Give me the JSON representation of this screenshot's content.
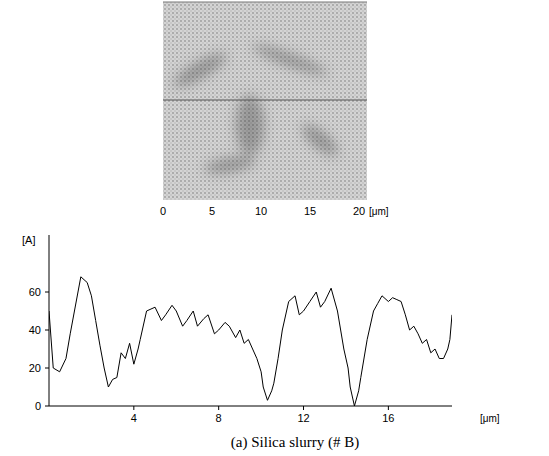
{
  "chart_data": [
    {
      "type": "image",
      "xlim": [
        0,
        20
      ],
      "xticks": [
        0,
        5,
        10,
        15,
        20
      ],
      "x_label": "[μm]"
    },
    {
      "type": "line",
      "title": "(a) Silica slurry (# B)",
      "y_label": "[A]",
      "x_label": "[μm]",
      "color": "#000000",
      "x": [
        0,
        0.2,
        0.5,
        0.8,
        1.0,
        1.2,
        1.5,
        1.8,
        2.0,
        2.2,
        2.4,
        2.6,
        2.8,
        3.0,
        3.2,
        3.4,
        3.6,
        3.8,
        4.0,
        4.2,
        4.3,
        4.6,
        5.0,
        5.3,
        5.5,
        5.8,
        6.0,
        6.3,
        6.5,
        6.8,
        7.0,
        7.3,
        7.5,
        7.8,
        8.0,
        8.3,
        8.5,
        8.8,
        9.0,
        9.2,
        9.4,
        9.6,
        9.8,
        10.0,
        10.1,
        10.3,
        10.5,
        10.6,
        10.8,
        11.0,
        11.3,
        11.6,
        11.8,
        12.0,
        12.3,
        12.6,
        12.8,
        13.0,
        13.3,
        13.6,
        13.9,
        14.1,
        14.2,
        14.4,
        14.6,
        14.7,
        15.0,
        15.3,
        15.5,
        15.7,
        16.0,
        16.2,
        16.4,
        16.6,
        16.8,
        17.0,
        17.2,
        17.4,
        17.6,
        17.8,
        18.0,
        18.2,
        18.4,
        18.6,
        18.8,
        18.9,
        19.0
      ],
      "values": [
        50,
        20,
        18,
        25,
        38,
        50,
        68,
        65,
        58,
        45,
        32,
        20,
        10,
        14,
        15,
        28,
        25,
        33,
        22,
        30,
        35,
        50,
        52,
        45,
        48,
        53,
        50,
        42,
        45,
        50,
        42,
        46,
        48,
        38,
        40,
        44,
        42,
        36,
        40,
        33,
        35,
        30,
        25,
        18,
        10,
        3,
        8,
        12,
        25,
        40,
        55,
        58,
        48,
        50,
        55,
        60,
        52,
        55,
        62,
        50,
        30,
        20,
        10,
        0,
        8,
        15,
        35,
        50,
        54,
        58,
        55,
        57,
        56,
        55,
        48,
        40,
        42,
        38,
        33,
        35,
        28,
        30,
        25,
        25,
        30,
        35,
        48
      ],
      "xlim": [
        0,
        19
      ],
      "xticks": [
        4,
        8,
        12,
        16
      ],
      "ylim": [
        0,
        90
      ],
      "yticks": [
        0,
        20,
        40,
        60
      ],
      "grid": false
    }
  ]
}
